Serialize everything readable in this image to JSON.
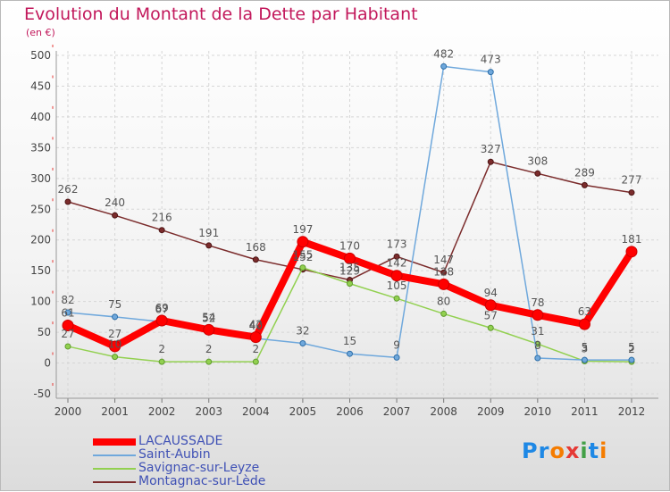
{
  "title": "Evolution du Montant de la Dette par Habitant",
  "subtitle": "(en €)",
  "logo": "Proxiti",
  "chart_data": {
    "type": "line",
    "title": "Evolution du Montant de la Dette par Habitant",
    "ylabel": "(en €)",
    "xlabel": "",
    "ylim": [
      -50,
      500
    ],
    "yticks": [
      -50,
      0,
      50,
      100,
      150,
      200,
      250,
      300,
      350,
      400,
      450,
      500
    ],
    "grid": true,
    "legend_position": "bottom-left",
    "categories": [
      "2000",
      "2001",
      "2002",
      "2003",
      "2004",
      "2005",
      "2006",
      "2007",
      "2008",
      "2009",
      "2010",
      "2011",
      "2012"
    ],
    "series": [
      {
        "name": "LACAUSSADE",
        "color": "#ff0000",
        "values": [
          61,
          27,
          69,
          54,
          42,
          197,
          170,
          142,
          128,
          94,
          78,
          63,
          181
        ],
        "labels": [
          "61",
          "27",
          "69",
          "54",
          "42",
          "197",
          "170",
          "142",
          "128",
          "94",
          "78",
          "63",
          "181"
        ]
      },
      {
        "name": "Saint-Aubin",
        "color": "#6fa8dc",
        "values": [
          82,
          75,
          67,
          52,
          40,
          32,
          15,
          9,
          482,
          473,
          8,
          5,
          5
        ],
        "labels": [
          "82",
          "75",
          "67",
          "52",
          "40",
          "32",
          "15",
          "9",
          "482",
          "473",
          "8",
          "5",
          "5"
        ]
      },
      {
        "name": "Savignac-sur-Leyze",
        "color": "#92d050",
        "values": [
          27,
          10,
          2,
          2,
          2,
          155,
          129,
          105,
          80,
          57,
          31,
          3,
          2
        ],
        "labels": [
          "27",
          "10",
          "2",
          "2",
          "2",
          "155",
          "129",
          "105",
          "80",
          "57",
          "31",
          "3",
          "2"
        ]
      },
      {
        "name": "Montagnac-sur-Lède",
        "color": "#7b2c2c",
        "values": [
          262,
          240,
          216,
          191,
          168,
          152,
          135,
          173,
          147,
          327,
          308,
          289,
          277
        ],
        "labels": [
          "262",
          "240",
          "216",
          "191",
          "168",
          "152",
          "135",
          "173",
          "147",
          "327",
          "308",
          "289",
          "277"
        ]
      }
    ]
  }
}
